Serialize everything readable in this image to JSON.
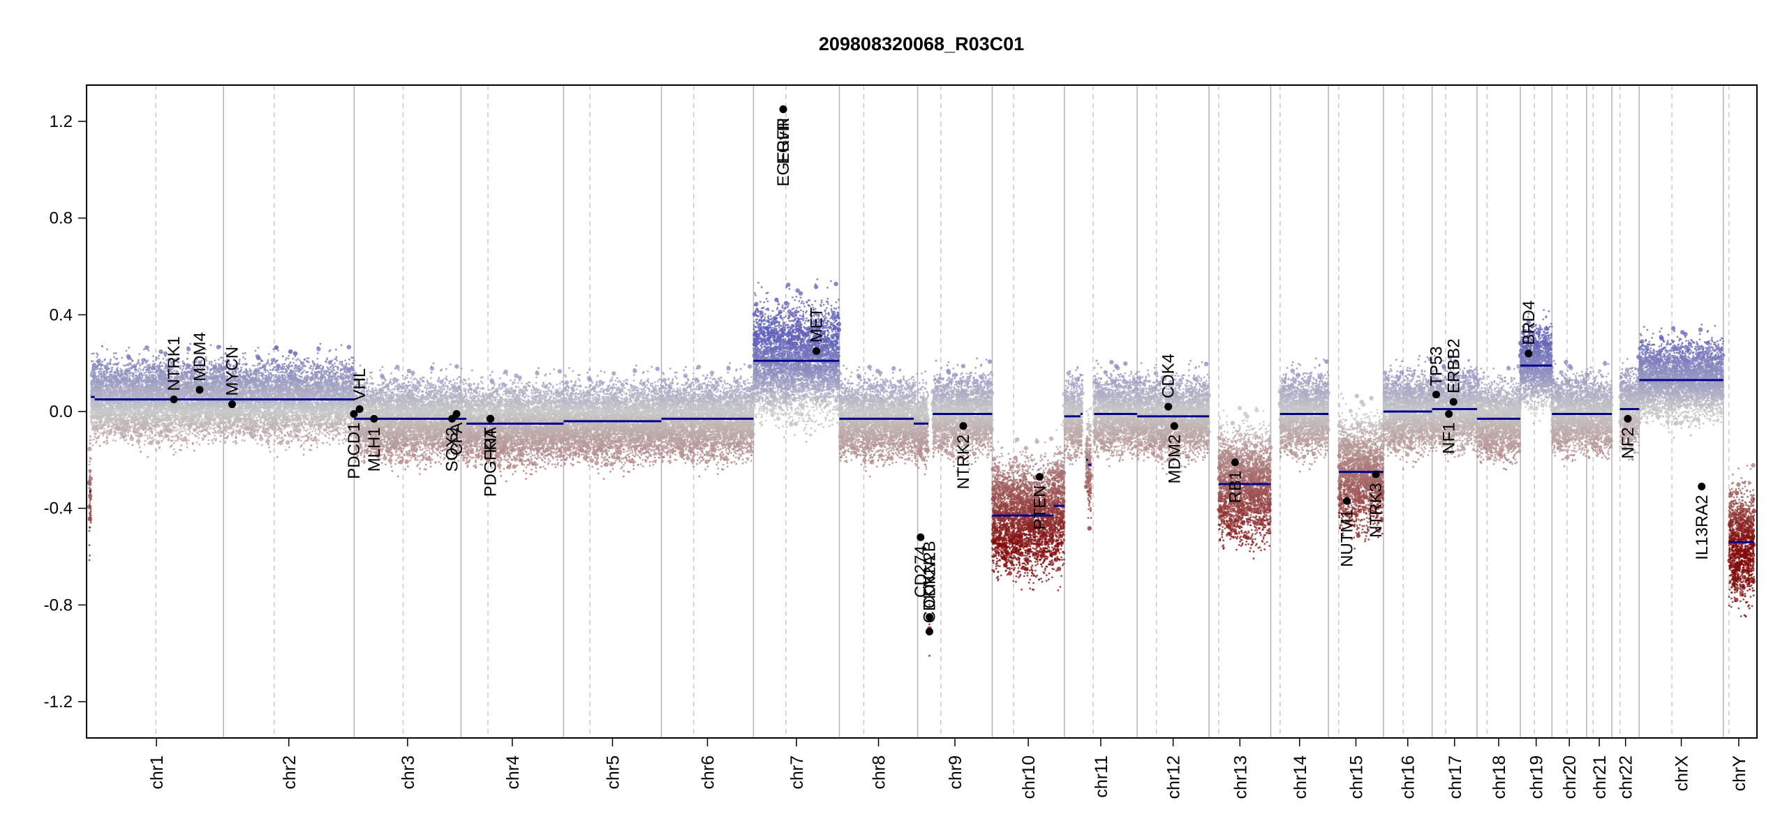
{
  "chart_data": {
    "type": "scatter",
    "title": "209808320068_R03C01",
    "xlabel": "",
    "ylabel": "",
    "ylim": [
      -1.35,
      1.35
    ],
    "yticks": [
      -1.2,
      -0.8,
      -0.4,
      0.0,
      0.4,
      0.8,
      1.2
    ],
    "ytick_labels": [
      "-1.2",
      "-0.8",
      "-0.4",
      "0.0",
      "0.4",
      "0.8",
      "1.2"
    ],
    "grid": "vertical chromosome boundaries (solid) and centromeres (dashed)",
    "chromosomes": [
      {
        "name": "chr1",
        "length": 248.9,
        "centromere": 123.4
      },
      {
        "name": "chr2",
        "length": 242.2,
        "centromere": 93.9
      },
      {
        "name": "chr3",
        "length": 198.3,
        "centromere": 90.9
      },
      {
        "name": "chr4",
        "length": 190.2,
        "centromere": 50.0
      },
      {
        "name": "chr5",
        "length": 181.5,
        "centromere": 48.8
      },
      {
        "name": "chr6",
        "length": 170.8,
        "centromere": 59.8
      },
      {
        "name": "chr7",
        "length": 159.3,
        "centromere": 60.1
      },
      {
        "name": "chr8",
        "length": 145.1,
        "centromere": 45.2
      },
      {
        "name": "chr9",
        "length": 138.4,
        "centromere": 43.0
      },
      {
        "name": "chr10",
        "length": 133.8,
        "centromere": 39.8
      },
      {
        "name": "chr11",
        "length": 135.1,
        "centromere": 53.4
      },
      {
        "name": "chr12",
        "length": 133.3,
        "centromere": 35.5
      },
      {
        "name": "chr13",
        "length": 114.4,
        "centromere": 17.7
      },
      {
        "name": "chr14",
        "length": 107.0,
        "centromere": 17.2
      },
      {
        "name": "chr15",
        "length": 102.0,
        "centromere": 19.0
      },
      {
        "name": "chr16",
        "length": 90.3,
        "centromere": 36.8
      },
      {
        "name": "chr17",
        "length": 83.3,
        "centromere": 25.1
      },
      {
        "name": "chr18",
        "length": 80.4,
        "centromere": 18.5
      },
      {
        "name": "chr19",
        "length": 58.6,
        "centromere": 26.2
      },
      {
        "name": "chr20",
        "length": 64.4,
        "centromere": 28.1
      },
      {
        "name": "chr21",
        "length": 46.7,
        "centromere": 12.0
      },
      {
        "name": "chr22",
        "length": 50.8,
        "centromere": 15.0
      },
      {
        "name": "chrX",
        "length": 156.0,
        "centromere": 60.6
      },
      {
        "name": "chrY",
        "length": 57.2,
        "centromere": 10.4
      }
    ],
    "segments": [
      {
        "chr": "chr1",
        "start": 0,
        "end": 3,
        "mean": -0.33
      },
      {
        "chr": "chr1",
        "start": 3,
        "end": 10,
        "mean": 0.06
      },
      {
        "chr": "chr1",
        "start": 10,
        "end": 248.9,
        "mean": 0.05
      },
      {
        "chr": "chr2",
        "start": 0,
        "end": 242.2,
        "mean": 0.05
      },
      {
        "chr": "chr3",
        "start": 0,
        "end": 198.3,
        "mean": -0.03
      },
      {
        "chr": "chr4",
        "start": 0,
        "end": 10,
        "mean": -0.03
      },
      {
        "chr": "chr4",
        "start": 10,
        "end": 190.2,
        "mean": -0.05
      },
      {
        "chr": "chr5",
        "start": 0,
        "end": 181.5,
        "mean": -0.04
      },
      {
        "chr": "chr6",
        "start": 0,
        "end": 170.8,
        "mean": -0.03
      },
      {
        "chr": "chr7",
        "start": 0,
        "end": 159.3,
        "mean": 0.21
      },
      {
        "chr": "chr8",
        "start": 0,
        "end": 138.0,
        "mean": -0.03
      },
      {
        "chr": "chr8",
        "start": 138.0,
        "end": 145.1,
        "mean": -0.05
      },
      {
        "chr": "chr9",
        "start": 0,
        "end": 20.0,
        "mean": -0.05
      },
      {
        "chr": "chr9",
        "start": 21.9,
        "end": 22.0,
        "mean": -0.91
      },
      {
        "chr": "chr9",
        "start": 28.0,
        "end": 138.4,
        "mean": -0.01
      },
      {
        "chr": "chr10",
        "start": 0,
        "end": 114.0,
        "mean": -0.43
      },
      {
        "chr": "chr10",
        "start": 114.0,
        "end": 133.8,
        "mean": -0.39
      },
      {
        "chr": "chr11",
        "start": 0,
        "end": 30.0,
        "mean": -0.02
      },
      {
        "chr": "chr11",
        "start": 30.0,
        "end": 34.0,
        "mean": -0.01
      },
      {
        "chr": "chr11",
        "start": 40.0,
        "end": 44.0,
        "mean": -0.2
      },
      {
        "chr": "chr11",
        "start": 44.0,
        "end": 50.0,
        "mean": -0.22
      },
      {
        "chr": "chr11",
        "start": 55.0,
        "end": 135.1,
        "mean": -0.01
      },
      {
        "chr": "chr12",
        "start": 0,
        "end": 133.3,
        "mean": -0.02
      },
      {
        "chr": "chr13",
        "start": 17.7,
        "end": 114.4,
        "mean": -0.3
      },
      {
        "chr": "chr14",
        "start": 17.2,
        "end": 107.0,
        "mean": -0.01
      },
      {
        "chr": "chr15",
        "start": 19.0,
        "end": 102.0,
        "mean": -0.25
      },
      {
        "chr": "chr16",
        "start": 0,
        "end": 90.3,
        "mean": 0.0
      },
      {
        "chr": "chr17",
        "start": 0,
        "end": 83.3,
        "mean": 0.01
      },
      {
        "chr": "chr18",
        "start": 0,
        "end": 80.4,
        "mean": -0.03
      },
      {
        "chr": "chr19",
        "start": 0,
        "end": 58.6,
        "mean": 0.19
      },
      {
        "chr": "chr20",
        "start": 0,
        "end": 64.4,
        "mean": -0.01
      },
      {
        "chr": "chr21",
        "start": 0,
        "end": 46.7,
        "mean": -0.01
      },
      {
        "chr": "chr22",
        "start": 15.0,
        "end": 50.8,
        "mean": 0.01
      },
      {
        "chr": "chrX",
        "start": 0,
        "end": 156.0,
        "mean": 0.13
      },
      {
        "chr": "chrY",
        "start": 10.4,
        "end": 57.2,
        "mean": -0.54
      }
    ],
    "genes": [
      {
        "name": "NTRK1",
        "chr": "chr1",
        "pos": 156.8,
        "value": 0.05,
        "label_side": "up"
      },
      {
        "name": "MDM4",
        "chr": "chr1",
        "pos": 204.5,
        "value": 0.09,
        "label_side": "up"
      },
      {
        "name": "MYCN",
        "chr": "chr2",
        "pos": 15.9,
        "value": 0.03,
        "label_side": "up"
      },
      {
        "name": "VHL",
        "chr": "chr3",
        "pos": 10.1,
        "value": 0.01,
        "label_side": "up"
      },
      {
        "name": "PDCD1",
        "chr": "chr2",
        "pos": 241.8,
        "value": -0.01,
        "label_side": "down"
      },
      {
        "name": "MLH1",
        "chr": "chr3",
        "pos": 37.0,
        "value": -0.03,
        "label_side": "down"
      },
      {
        "name": "SOX2",
        "chr": "chr3",
        "pos": 181.7,
        "value": -0.03,
        "label_side": "down"
      },
      {
        "name": "CPA",
        "chr": "chr3",
        "pos": 190.0,
        "value": -0.01,
        "label_side": "down"
      },
      {
        "name": "PDGFRA",
        "chr": "chr4",
        "pos": 54.2,
        "value": -0.03,
        "label_side": "down"
      },
      {
        "name": "KIT",
        "chr": "chr4",
        "pos": 54.7,
        "value": -0.03,
        "label_side": "down"
      },
      {
        "name": "EGFR",
        "chr": "chr7",
        "pos": 55.1,
        "value": 1.25,
        "label_side": "down"
      },
      {
        "name": "EGFRvIII",
        "chr": "chr7",
        "pos": 55.2,
        "value": 1.25,
        "label_side": "down"
      },
      {
        "name": "MET",
        "chr": "chr7",
        "pos": 116.7,
        "value": 0.25,
        "label_side": "up"
      },
      {
        "name": "CD274",
        "chr": "chr9",
        "pos": 5.5,
        "value": -0.52,
        "label_side": "down"
      },
      {
        "name": "CDKN2A",
        "chr": "chr9",
        "pos": 21.9,
        "value": -0.91,
        "label_side": "up"
      },
      {
        "name": "CDKN2B",
        "chr": "chr9",
        "pos": 22.0,
        "value": -0.85,
        "label_side": "up"
      },
      {
        "name": "NTRK2",
        "chr": "chr9",
        "pos": 84.7,
        "value": -0.06,
        "label_side": "down"
      },
      {
        "name": "PTEN",
        "chr": "chr10",
        "pos": 87.9,
        "value": -0.27,
        "label_side": "down"
      },
      {
        "name": "CDK4",
        "chr": "chr12",
        "pos": 57.7,
        "value": 0.02,
        "label_side": "up"
      },
      {
        "name": "MDM2",
        "chr": "chr12",
        "pos": 68.8,
        "value": -0.06,
        "label_side": "down"
      },
      {
        "name": "RB1",
        "chr": "chr13",
        "pos": 48.3,
        "value": -0.21,
        "label_side": "down"
      },
      {
        "name": "NUTM1",
        "chr": "chr15",
        "pos": 34.3,
        "value": -0.37,
        "label_side": "down"
      },
      {
        "name": "NTRK3",
        "chr": "chr15",
        "pos": 88.0,
        "value": -0.26,
        "label_side": "down"
      },
      {
        "name": "TP53",
        "chr": "chr17",
        "pos": 7.6,
        "value": 0.07,
        "label_side": "up"
      },
      {
        "name": "NF1",
        "chr": "chr17",
        "pos": 31.1,
        "value": -0.01,
        "label_side": "down"
      },
      {
        "name": "ERBB2",
        "chr": "chr17",
        "pos": 39.7,
        "value": 0.04,
        "label_side": "up"
      },
      {
        "name": "BRD4",
        "chr": "chr19",
        "pos": 15.3,
        "value": 0.24,
        "label_side": "up"
      },
      {
        "name": "NF2",
        "chr": "chr22",
        "pos": 29.6,
        "value": -0.03,
        "label_side": "down"
      },
      {
        "name": "IL13RA2",
        "chr": "chrX",
        "pos": 115.8,
        "value": -0.31,
        "label_side": "down"
      }
    ],
    "colors": {
      "gain": "#5a5ab4",
      "neutral": "#c8c8c8",
      "loss": "#8b1010",
      "segment": "#00008b",
      "chr_boundary": "#b4b4b4",
      "centromere": "#c8c8c8",
      "gene_point": "#000000"
    }
  }
}
